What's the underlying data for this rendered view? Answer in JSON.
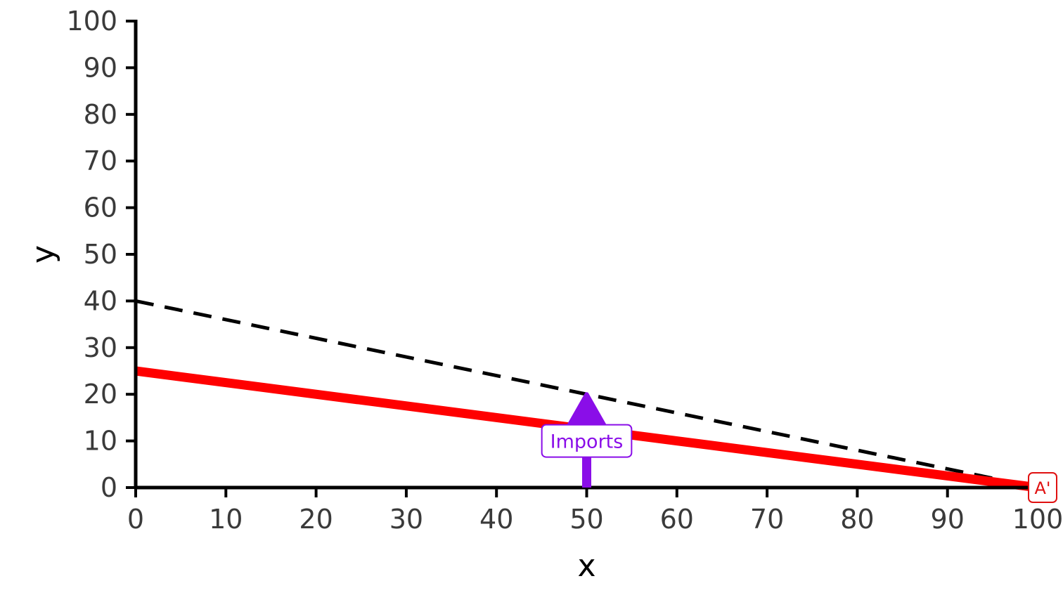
{
  "chart_data": {
    "type": "line",
    "title": "",
    "xlabel": "x",
    "ylabel": "y",
    "xlim": [
      0,
      100
    ],
    "ylim": [
      0,
      100
    ],
    "x_ticks": [
      0,
      10,
      20,
      30,
      40,
      50,
      60,
      70,
      80,
      90,
      100
    ],
    "y_ticks": [
      0,
      10,
      20,
      30,
      40,
      50,
      60,
      70,
      80,
      90,
      100
    ],
    "grid": false,
    "series": [
      {
        "style": "dashed",
        "color": "#000000",
        "points": [
          [
            0,
            40
          ],
          [
            100,
            0
          ]
        ]
      },
      {
        "style": "solid",
        "color": "#ff0000",
        "points": [
          [
            0,
            25
          ],
          [
            100,
            0
          ]
        ]
      }
    ],
    "annotations": [
      {
        "type": "arrow",
        "text": "Imports",
        "color": "#8a0ee8",
        "from": [
          50,
          0
        ],
        "to": [
          50,
          20
        ],
        "label_y": 10
      },
      {
        "type": "point-label",
        "text": "A'",
        "color": "#e01010",
        "at": [
          100,
          0
        ]
      }
    ]
  }
}
